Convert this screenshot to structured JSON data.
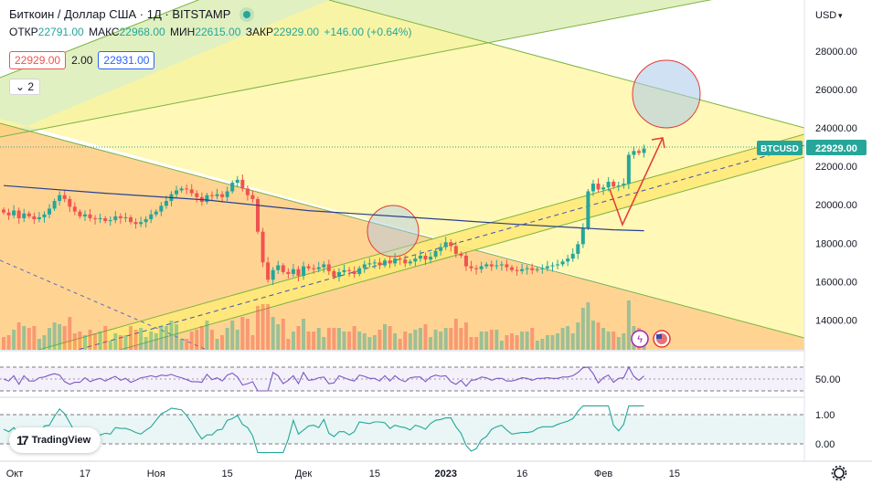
{
  "header": {
    "title": "Биткоин / Доллар США · 1Д · BITSTAMP",
    "ohlc": [
      {
        "label": "ОТКР",
        "value": "22791.00"
      },
      {
        "label": "МАКС",
        "value": "22968.00"
      },
      {
        "label": "МИН",
        "value": "22615.00"
      },
      {
        "label": "ЗАКР",
        "value": "22929.00"
      }
    ],
    "change": "+146.00 (+0.64%)",
    "sell_price": "22929.00",
    "spread": "2.00",
    "buy_price": "22931.00",
    "collapse_label": "2"
  },
  "axis": {
    "currency": "USD",
    "currency_arrow": "▾",
    "symbol_tag": "BTCUSD",
    "last_price": "22929.00",
    "rsi_level": "50.00",
    "osc_top": "1.00",
    "osc_bottom": "0.00"
  },
  "branding": {
    "logo_text": "TradingView"
  },
  "colors": {
    "up": "#26a69a",
    "down": "#ef5350",
    "ma": "#2a3f8f",
    "channel_fill": "#fff59d",
    "orange_zone": "#ffcc80",
    "green_zone": "#d4e9a8",
    "rsi": "#7e57c2",
    "osc": "#26a69a"
  },
  "icons": [
    "flash-icon",
    "us-flag-icon",
    "settings-gear-icon"
  ],
  "chart_data": {
    "type": "candlestick",
    "symbol": "BTCUSD",
    "x_tick_labels": [
      "Окт",
      "17",
      "Ноя",
      "15",
      "Дек",
      "15",
      "2023",
      "16",
      "Фев",
      "15"
    ],
    "y_ticks": [
      14000,
      16000,
      18000,
      20000,
      22000,
      24000,
      26000,
      28000
    ],
    "ylim": [
      12500,
      29500
    ],
    "close_series": [
      19600,
      19450,
      19700,
      19300,
      19550,
      19400,
      19250,
      19350,
      19500,
      19800,
      20200,
      20500,
      20300,
      19900,
      19650,
      19400,
      19500,
      19300,
      19250,
      19300,
      19150,
      19200,
      19400,
      19300,
      19350,
      19100,
      19000,
      19100,
      19250,
      19500,
      19650,
      19950,
      20200,
      20550,
      20750,
      20850,
      20800,
      20600,
      20400,
      20150,
      20500,
      20450,
      20550,
      20400,
      20700,
      21150,
      21300,
      20850,
      20500,
      20300,
      18600,
      17000,
      16100,
      16600,
      16850,
      16500,
      16400,
      16650,
      16300,
      16800,
      16700,
      16650,
      16750,
      16900,
      16550,
      16250,
      16500,
      16600,
      16550,
      16400,
      16700,
      16900,
      16950,
      17000,
      16850,
      17100,
      16950,
      17200,
      17150,
      16950,
      17050,
      17200,
      17350,
      17150,
      17300,
      17600,
      17800,
      18050,
      17850,
      17450,
      17350,
      16800,
      16700,
      16650,
      16800,
      16900,
      16800,
      16850,
      16900,
      16750,
      16600,
      16550,
      16650,
      16700,
      16600,
      16650,
      16700,
      16800,
      16850,
      16900,
      17050,
      17200,
      17450,
      17950,
      18800,
      20700,
      21100,
      20800,
      20900,
      21200,
      20950,
      21000,
      21100,
      22600,
      22800,
      22700,
      22929
    ],
    "moving_average_approx": [
      [
        0,
        21000
      ],
      [
        20,
        20600
      ],
      [
        40,
        20250
      ],
      [
        60,
        19700
      ],
      [
        80,
        19350
      ],
      [
        100,
        19000
      ],
      [
        120,
        18700
      ],
      [
        126,
        18650
      ]
    ],
    "rsi_level": 50,
    "oscillator_range": [
      0,
      1
    ]
  }
}
